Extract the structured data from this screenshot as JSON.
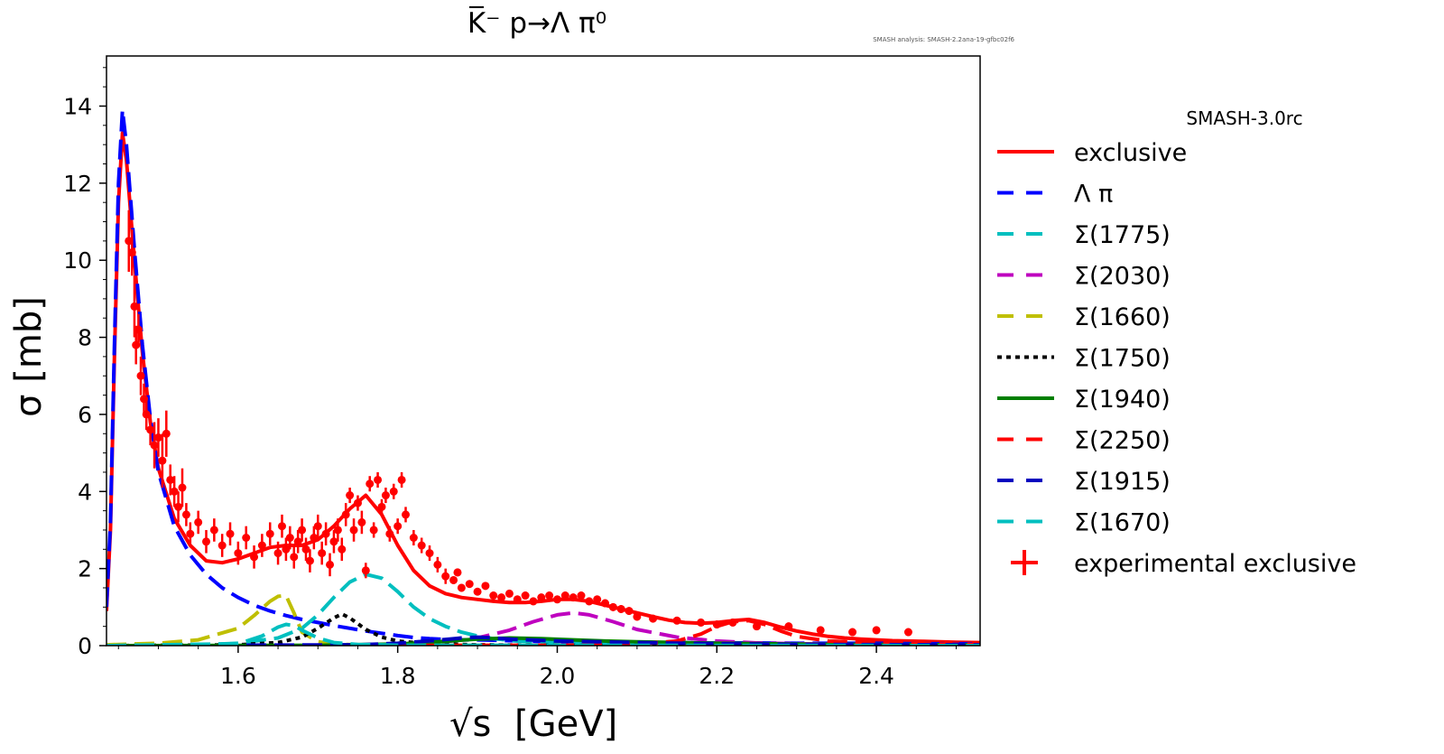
{
  "chart_data": {
    "type": "line",
    "title": "K̅⁻ p→Λ π⁰",
    "annotation": "SMASH analysis: SMASH-2.2ana-19-gfbc02f6",
    "xlabel": "[GeV]",
    "xlabel_symbol": "√s",
    "ylabel": "σ [mb]",
    "xlim": [
      1.435,
      2.53
    ],
    "ylim": [
      0,
      15.3
    ],
    "xticks": [
      1.6,
      1.8,
      2.0,
      2.2,
      2.4
    ],
    "xtick_labels": [
      "1.6",
      "1.8",
      "2.0",
      "2.2",
      "2.4"
    ],
    "yticks": [
      0,
      2,
      4,
      6,
      8,
      10,
      12,
      14
    ],
    "ytick_labels": [
      "0",
      "2",
      "4",
      "6",
      "8",
      "10",
      "12",
      "14"
    ],
    "legend_title": "SMASH-3.0rc",
    "series": [
      {
        "name": "exclusive",
        "color": "#ff0000",
        "style": "solid",
        "x": [
          1.435,
          1.44,
          1.445,
          1.45,
          1.455,
          1.46,
          1.47,
          1.48,
          1.49,
          1.5,
          1.52,
          1.54,
          1.56,
          1.58,
          1.6,
          1.62,
          1.64,
          1.66,
          1.68,
          1.7,
          1.72,
          1.74,
          1.76,
          1.78,
          1.8,
          1.82,
          1.84,
          1.86,
          1.88,
          1.9,
          1.92,
          1.94,
          1.96,
          1.98,
          2.0,
          2.02,
          2.04,
          2.06,
          2.08,
          2.1,
          2.12,
          2.14,
          2.16,
          2.18,
          2.2,
          2.22,
          2.24,
          2.26,
          2.28,
          2.3,
          2.32,
          2.34,
          2.36,
          2.38,
          2.4,
          2.42,
          2.44,
          2.46,
          2.48,
          2.5,
          2.53
        ],
        "y": [
          0.9,
          3.0,
          7.5,
          11.5,
          13.3,
          12.6,
          10.0,
          7.6,
          5.8,
          4.6,
          3.3,
          2.6,
          2.2,
          2.15,
          2.25,
          2.4,
          2.55,
          2.6,
          2.6,
          2.75,
          3.1,
          3.55,
          3.9,
          3.4,
          2.6,
          1.95,
          1.55,
          1.35,
          1.25,
          1.2,
          1.15,
          1.12,
          1.12,
          1.15,
          1.2,
          1.2,
          1.15,
          1.05,
          0.95,
          0.85,
          0.75,
          0.66,
          0.6,
          0.58,
          0.6,
          0.65,
          0.68,
          0.6,
          0.48,
          0.38,
          0.3,
          0.24,
          0.2,
          0.17,
          0.15,
          0.13,
          0.12,
          0.11,
          0.1,
          0.09,
          0.08
        ]
      },
      {
        "name": "Λ π",
        "color": "#0000ff",
        "style": "dashed",
        "x": [
          1.435,
          1.44,
          1.445,
          1.45,
          1.455,
          1.46,
          1.47,
          1.48,
          1.49,
          1.5,
          1.52,
          1.54,
          1.56,
          1.58,
          1.6,
          1.62,
          1.64,
          1.66,
          1.68,
          1.7,
          1.72,
          1.74,
          1.76,
          1.78,
          1.8,
          1.82,
          1.84,
          1.86,
          1.88,
          1.9,
          1.92,
          1.94,
          1.96,
          1.98,
          2.0,
          2.05,
          2.1,
          2.15,
          2.2,
          2.25,
          2.3,
          2.35,
          2.4,
          2.45,
          2.53
        ],
        "y": [
          1.0,
          3.2,
          7.8,
          12.0,
          13.9,
          13.0,
          10.3,
          7.8,
          5.9,
          4.5,
          3.1,
          2.35,
          1.85,
          1.5,
          1.25,
          1.05,
          0.9,
          0.78,
          0.68,
          0.6,
          0.52,
          0.45,
          0.38,
          0.32,
          0.26,
          0.21,
          0.18,
          0.16,
          0.15,
          0.15,
          0.14,
          0.13,
          0.12,
          0.11,
          0.1,
          0.09,
          0.08,
          0.08,
          0.07,
          0.07,
          0.06,
          0.06,
          0.06,
          0.05,
          0.05
        ]
      },
      {
        "name": "Σ(1775)",
        "color": "#00bfbf",
        "style": "dashed",
        "x": [
          1.435,
          1.55,
          1.6,
          1.65,
          1.68,
          1.7,
          1.72,
          1.74,
          1.76,
          1.78,
          1.8,
          1.82,
          1.84,
          1.86,
          1.88,
          1.9,
          1.92,
          1.95,
          2.0,
          2.1,
          2.2,
          2.3,
          2.53
        ],
        "y": [
          0,
          0.02,
          0.06,
          0.2,
          0.45,
          0.8,
          1.25,
          1.65,
          1.85,
          1.75,
          1.4,
          1.0,
          0.7,
          0.5,
          0.35,
          0.25,
          0.18,
          0.12,
          0.07,
          0.04,
          0.03,
          0.02,
          0.01
        ]
      },
      {
        "name": "Σ(2030)",
        "color": "#bf00bf",
        "style": "dashed",
        "x": [
          1.435,
          1.75,
          1.8,
          1.85,
          1.9,
          1.94,
          1.97,
          2.0,
          2.02,
          2.04,
          2.07,
          2.1,
          2.15,
          2.2,
          2.25,
          2.3,
          2.4,
          2.53
        ],
        "y": [
          0,
          0.01,
          0.03,
          0.08,
          0.2,
          0.4,
          0.62,
          0.8,
          0.85,
          0.8,
          0.62,
          0.42,
          0.22,
          0.12,
          0.07,
          0.05,
          0.03,
          0.02
        ]
      },
      {
        "name": "Σ(1660)",
        "color": "#bfbf00",
        "style": "dashed",
        "x": [
          1.435,
          1.5,
          1.55,
          1.6,
          1.62,
          1.64,
          1.65,
          1.66,
          1.67,
          1.68,
          1.7,
          1.72,
          1.75,
          1.8,
          1.9,
          2.0,
          2.53
        ],
        "y": [
          0.02,
          0.06,
          0.15,
          0.45,
          0.78,
          1.15,
          1.28,
          1.3,
          0.85,
          0.35,
          0.1,
          0.04,
          0.02,
          0.01,
          0.01,
          0.0,
          0.0
        ]
      },
      {
        "name": "Σ(1750)",
        "color": "#000000",
        "style": "dotted",
        "x": [
          1.435,
          1.6,
          1.65,
          1.68,
          1.7,
          1.72,
          1.73,
          1.74,
          1.76,
          1.78,
          1.8,
          1.83,
          1.86,
          1.9,
          2.0,
          2.53
        ],
        "y": [
          0,
          0.02,
          0.08,
          0.22,
          0.45,
          0.72,
          0.82,
          0.72,
          0.42,
          0.22,
          0.12,
          0.06,
          0.04,
          0.02,
          0.01,
          0.0
        ]
      },
      {
        "name": "Σ(1940)",
        "color": "#007f00",
        "style": "solid",
        "x": [
          1.435,
          1.7,
          1.8,
          1.85,
          1.9,
          1.94,
          1.98,
          2.02,
          2.06,
          2.1,
          2.2,
          2.3,
          2.53
        ],
        "y": [
          0,
          0.01,
          0.04,
          0.1,
          0.17,
          0.2,
          0.18,
          0.15,
          0.12,
          0.1,
          0.06,
          0.04,
          0.02
        ]
      },
      {
        "name": "Σ(2250)",
        "color": "#ff0000",
        "style": "dashed",
        "x": [
          1.435,
          2.0,
          2.1,
          2.15,
          2.18,
          2.2,
          2.22,
          2.24,
          2.26,
          2.28,
          2.3,
          2.34,
          2.4,
          2.45,
          2.53
        ],
        "y": [
          0,
          0.01,
          0.04,
          0.12,
          0.3,
          0.5,
          0.62,
          0.65,
          0.55,
          0.38,
          0.24,
          0.12,
          0.07,
          0.05,
          0.03
        ]
      },
      {
        "name": "Σ(1915)",
        "color": "#0000bf",
        "style": "dashed",
        "x": [
          1.435,
          1.75,
          1.8,
          1.85,
          1.88,
          1.9,
          1.92,
          1.95,
          2.0,
          2.05,
          2.1,
          2.2,
          2.3,
          2.53
        ],
        "y": [
          0,
          0.02,
          0.06,
          0.14,
          0.2,
          0.22,
          0.2,
          0.16,
          0.12,
          0.1,
          0.08,
          0.05,
          0.03,
          0.02
        ]
      },
      {
        "name": "Σ(1670)",
        "color": "#00bfbf",
        "style": "dashed",
        "x": [
          1.435,
          1.6,
          1.63,
          1.65,
          1.66,
          1.67,
          1.68,
          1.7,
          1.72,
          1.75,
          1.8,
          2.53
        ],
        "y": [
          0,
          0.05,
          0.25,
          0.48,
          0.55,
          0.52,
          0.4,
          0.2,
          0.08,
          0.03,
          0.01,
          0.0
        ]
      }
    ],
    "experimental": {
      "name": "experimental exclusive",
      "color": "#ff0000",
      "points": [
        {
          "x": 1.463,
          "y": 10.5,
          "e": 0.8
        },
        {
          "x": 1.467,
          "y": 10.2,
          "e": 0.6
        },
        {
          "x": 1.47,
          "y": 8.8,
          "e": 0.8
        },
        {
          "x": 1.472,
          "y": 7.8,
          "e": 0.5
        },
        {
          "x": 1.475,
          "y": 8.2,
          "e": 0.4
        },
        {
          "x": 1.478,
          "y": 7.0,
          "e": 0.5
        },
        {
          "x": 1.482,
          "y": 6.4,
          "e": 0.4
        },
        {
          "x": 1.485,
          "y": 6.0,
          "e": 0.4
        },
        {
          "x": 1.49,
          "y": 5.6,
          "e": 0.4
        },
        {
          "x": 1.495,
          "y": 5.2,
          "e": 0.6
        },
        {
          "x": 1.5,
          "y": 5.4,
          "e": 0.5
        },
        {
          "x": 1.505,
          "y": 4.8,
          "e": 0.7
        },
        {
          "x": 1.51,
          "y": 5.5,
          "e": 0.6
        },
        {
          "x": 1.515,
          "y": 4.3,
          "e": 0.4
        },
        {
          "x": 1.52,
          "y": 4.0,
          "e": 0.4
        },
        {
          "x": 1.525,
          "y": 3.6,
          "e": 0.4
        },
        {
          "x": 1.53,
          "y": 4.1,
          "e": 0.5
        },
        {
          "x": 1.535,
          "y": 3.4,
          "e": 0.3
        },
        {
          "x": 1.54,
          "y": 2.9,
          "e": 0.3
        },
        {
          "x": 1.55,
          "y": 3.2,
          "e": 0.3
        },
        {
          "x": 1.56,
          "y": 2.7,
          "e": 0.3
        },
        {
          "x": 1.57,
          "y": 3.0,
          "e": 0.3
        },
        {
          "x": 1.58,
          "y": 2.6,
          "e": 0.3
        },
        {
          "x": 1.59,
          "y": 2.9,
          "e": 0.3
        },
        {
          "x": 1.6,
          "y": 2.4,
          "e": 0.3
        },
        {
          "x": 1.61,
          "y": 2.8,
          "e": 0.3
        },
        {
          "x": 1.62,
          "y": 2.3,
          "e": 0.3
        },
        {
          "x": 1.63,
          "y": 2.6,
          "e": 0.3
        },
        {
          "x": 1.64,
          "y": 2.9,
          "e": 0.3
        },
        {
          "x": 1.65,
          "y": 2.4,
          "e": 0.3
        },
        {
          "x": 1.655,
          "y": 3.1,
          "e": 0.3
        },
        {
          "x": 1.66,
          "y": 2.5,
          "e": 0.3
        },
        {
          "x": 1.665,
          "y": 2.8,
          "e": 0.3
        },
        {
          "x": 1.67,
          "y": 2.3,
          "e": 0.3
        },
        {
          "x": 1.675,
          "y": 2.7,
          "e": 0.3
        },
        {
          "x": 1.68,
          "y": 3.0,
          "e": 0.3
        },
        {
          "x": 1.685,
          "y": 2.5,
          "e": 0.3
        },
        {
          "x": 1.69,
          "y": 2.2,
          "e": 0.3
        },
        {
          "x": 1.695,
          "y": 2.8,
          "e": 0.3
        },
        {
          "x": 1.7,
          "y": 3.1,
          "e": 0.3
        },
        {
          "x": 1.705,
          "y": 2.4,
          "e": 0.3
        },
        {
          "x": 1.71,
          "y": 2.9,
          "e": 0.3
        },
        {
          "x": 1.715,
          "y": 2.1,
          "e": 0.3
        },
        {
          "x": 1.72,
          "y": 2.7,
          "e": 0.3
        },
        {
          "x": 1.725,
          "y": 3.0,
          "e": 0.3
        },
        {
          "x": 1.73,
          "y": 2.5,
          "e": 0.3
        },
        {
          "x": 1.735,
          "y": 3.4,
          "e": 0.3
        },
        {
          "x": 1.74,
          "y": 3.9,
          "e": 0.2
        },
        {
          "x": 1.745,
          "y": 3.0,
          "e": 0.3
        },
        {
          "x": 1.75,
          "y": 3.7,
          "e": 0.2
        },
        {
          "x": 1.755,
          "y": 3.2,
          "e": 0.3
        },
        {
          "x": 1.76,
          "y": 1.95,
          "e": 0.2
        },
        {
          "x": 1.765,
          "y": 4.2,
          "e": 0.2
        },
        {
          "x": 1.77,
          "y": 3.0,
          "e": 0.2
        },
        {
          "x": 1.775,
          "y": 4.3,
          "e": 0.2
        },
        {
          "x": 1.78,
          "y": 3.6,
          "e": 0.2
        },
        {
          "x": 1.785,
          "y": 3.9,
          "e": 0.2
        },
        {
          "x": 1.79,
          "y": 2.9,
          "e": 0.2
        },
        {
          "x": 1.795,
          "y": 4.0,
          "e": 0.2
        },
        {
          "x": 1.8,
          "y": 3.1,
          "e": 0.2
        },
        {
          "x": 1.805,
          "y": 4.3,
          "e": 0.2
        },
        {
          "x": 1.81,
          "y": 3.4,
          "e": 0.2
        },
        {
          "x": 1.82,
          "y": 2.8,
          "e": 0.2
        },
        {
          "x": 1.83,
          "y": 2.6,
          "e": 0.2
        },
        {
          "x": 1.84,
          "y": 2.4,
          "e": 0.2
        },
        {
          "x": 1.85,
          "y": 2.1,
          "e": 0.2
        },
        {
          "x": 1.86,
          "y": 1.8,
          "e": 0.2
        },
        {
          "x": 1.87,
          "y": 1.7,
          "e": 0.1
        },
        {
          "x": 1.875,
          "y": 1.9,
          "e": 0.1
        },
        {
          "x": 1.88,
          "y": 1.5,
          "e": 0.1
        },
        {
          "x": 1.89,
          "y": 1.6,
          "e": 0.1
        },
        {
          "x": 1.9,
          "y": 1.4,
          "e": 0.1
        },
        {
          "x": 1.91,
          "y": 1.55,
          "e": 0.1
        },
        {
          "x": 1.92,
          "y": 1.3,
          "e": 0.1
        },
        {
          "x": 1.93,
          "y": 1.25,
          "e": 0.1
        },
        {
          "x": 1.94,
          "y": 1.35,
          "e": 0.1
        },
        {
          "x": 1.95,
          "y": 1.2,
          "e": 0.1
        },
        {
          "x": 1.96,
          "y": 1.3,
          "e": 0.1
        },
        {
          "x": 1.97,
          "y": 1.15,
          "e": 0.1
        },
        {
          "x": 1.98,
          "y": 1.25,
          "e": 0.1
        },
        {
          "x": 1.99,
          "y": 1.3,
          "e": 0.1
        },
        {
          "x": 2.0,
          "y": 1.2,
          "e": 0.1
        },
        {
          "x": 2.01,
          "y": 1.3,
          "e": 0.1
        },
        {
          "x": 2.02,
          "y": 1.25,
          "e": 0.1
        },
        {
          "x": 2.03,
          "y": 1.3,
          "e": 0.1
        },
        {
          "x": 2.04,
          "y": 1.15,
          "e": 0.1
        },
        {
          "x": 2.05,
          "y": 1.2,
          "e": 0.1
        },
        {
          "x": 2.06,
          "y": 1.1,
          "e": 0.1
        },
        {
          "x": 2.07,
          "y": 1.0,
          "e": 0.1
        },
        {
          "x": 2.08,
          "y": 0.95,
          "e": 0.1
        },
        {
          "x": 2.09,
          "y": 0.9,
          "e": 0.1
        },
        {
          "x": 2.1,
          "y": 0.75,
          "e": 0.1
        },
        {
          "x": 2.12,
          "y": 0.7,
          "e": 0.1
        },
        {
          "x": 2.15,
          "y": 0.65,
          "e": 0.1
        },
        {
          "x": 2.18,
          "y": 0.6,
          "e": 0.1
        },
        {
          "x": 2.2,
          "y": 0.55,
          "e": 0.1
        },
        {
          "x": 2.22,
          "y": 0.6,
          "e": 0.1
        },
        {
          "x": 2.25,
          "y": 0.5,
          "e": 0.1
        },
        {
          "x": 2.29,
          "y": 0.5,
          "e": 0.1
        },
        {
          "x": 2.33,
          "y": 0.4,
          "e": 0.1
        },
        {
          "x": 2.37,
          "y": 0.35,
          "e": 0.1
        },
        {
          "x": 2.4,
          "y": 0.4,
          "e": 0.1
        },
        {
          "x": 2.44,
          "y": 0.35,
          "e": 0.1
        }
      ]
    }
  }
}
